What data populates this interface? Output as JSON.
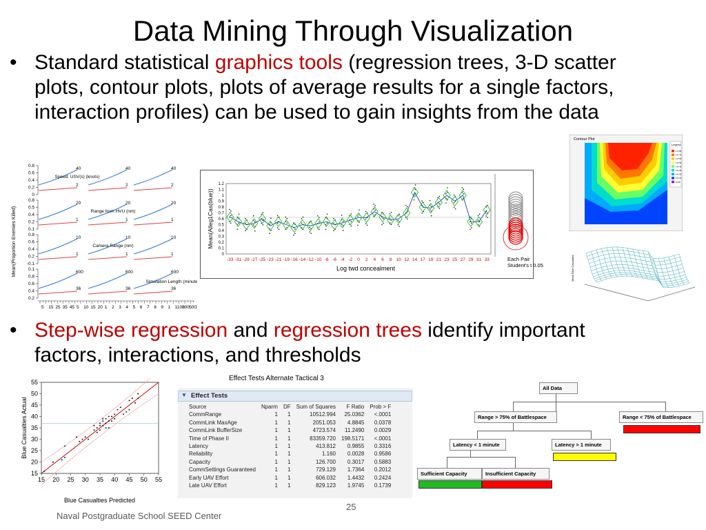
{
  "slide": {
    "title": "Data Mining Through Visualization",
    "page_number": "25",
    "footer": "Naval Postgraduate School SEED Center"
  },
  "bullets": [
    {
      "parts": [
        {
          "text": "Standard statistical ",
          "color": "#000000"
        },
        {
          "text": "graphics tools",
          "color": "#c00000"
        },
        {
          "text": " (regression trees, 3-D scatter plots, contour plots, plots of average results for a single factors, interaction profiles) can be used to gain insights from the data",
          "color": "#000000"
        }
      ]
    },
    {
      "parts": [
        {
          "text": "Step-wise regression",
          "color": "#c00000"
        },
        {
          "text": " and ",
          "color": "#000000"
        },
        {
          "text": "regression trees",
          "color": "#c00000"
        },
        {
          "text": " identify important factors, interactions, and thresholds",
          "color": "#000000"
        }
      ]
    }
  ],
  "profile_plot": {
    "ylabel": "Mean(Proportion Enemies Killed)",
    "row_ticks": [
      [
        "0.8",
        "0.6",
        "0.4",
        "0.2",
        "0"
      ],
      [
        "0.8",
        "0.5",
        "0.4",
        "0.2",
        "0.1"
      ],
      [
        "0.8",
        "0.6",
        "0.4",
        "0.2",
        "-0.1"
      ],
      [
        "0.1",
        "0.8",
        "0.6",
        "0.4",
        "0.2"
      ],
      [
        "-0.1",
        "0.8",
        "0.6",
        "0.4",
        "0.2",
        "-0.1"
      ]
    ],
    "factors": [
      "Speed: USV(s) (knots)",
      "Range from HVU (nm)",
      "Camera Range (nm)",
      "Simulation Length (minutes)"
    ],
    "level_labels": [
      [
        "40",
        "2",
        "40",
        "2",
        "40",
        "2"
      ],
      [
        "20",
        "1",
        "20",
        "1",
        "20",
        "1"
      ],
      [
        "10",
        "1",
        "10",
        "1",
        "10",
        "1"
      ],
      [
        "600",
        "36",
        "600",
        "36",
        "600",
        "36"
      ]
    ],
    "x_ticks": [
      "5",
      "15",
      "25",
      "35",
      "45",
      "5",
      "10",
      "15",
      "20",
      "1",
      "2",
      "3",
      "4",
      "5",
      "6",
      "7",
      "8",
      "9",
      "1",
      "1100",
      "300",
      "500",
      "700"
    ]
  },
  "means_plot": {
    "ylabel": "Mean(Alleg1Cas(blue))",
    "xlabel": "Log twd concealment",
    "y_ticks": [
      "1.2",
      "1.1",
      "1",
      "0.9",
      "0.8",
      "0.7",
      "0.6",
      "0.5",
      "0.4",
      "0.3",
      "0.2",
      "0.1",
      "0"
    ],
    "x_ticks": [
      "-33",
      "-31",
      "-29",
      "-27",
      "-25",
      "-23",
      "-21",
      "-19",
      "-16",
      "-14",
      "-12",
      "-10",
      "-8",
      "-6",
      "-4",
      "-2",
      "0",
      "2",
      "4",
      "6",
      "8",
      "10",
      "12",
      "14",
      "17",
      "19",
      "21",
      "23",
      "25",
      "27",
      "29",
      "31",
      "33"
    ],
    "means": [
      0.63,
      0.55,
      0.5,
      0.52,
      0.6,
      0.48,
      0.55,
      0.5,
      0.45,
      0.5,
      0.48,
      0.52,
      0.55,
      0.5,
      0.53,
      0.58,
      0.62,
      0.62,
      0.72,
      0.63,
      0.58,
      0.6,
      0.7,
      1.05,
      0.8,
      0.78,
      0.88,
      1.0,
      0.9,
      1.0,
      0.55,
      0.55,
      0.75
    ],
    "side_note": "Each Pair Student's t 0.05",
    "colors": {
      "mean_line": "#1f3fbf",
      "diamond": "#22bb22",
      "axis_tick": "#d00000"
    }
  },
  "contour_plot": {
    "title": "Contour Plot",
    "legend_title": "Legend",
    "legend_items": [
      "<=0.85",
      "<=0.75",
      "<=0.65",
      "<=0.55",
      "<=0.45",
      "<=0.35",
      "<=0.25",
      "<=0.15",
      ">0.85"
    ],
    "colors": [
      "#ff2200",
      "#ff7700",
      "#ffcc00",
      "#ffff33",
      "#66ff66",
      "#00ddcc",
      "#00aaff",
      "#0044ff",
      "#aa00cc"
    ]
  },
  "surface_plot": {
    "zlabel": "Mean Blue Casualties"
  },
  "scatter_plot": {
    "xlabel": "Blue Casualties Predicted",
    "ylabel": "Blue Casualties Actual",
    "x_ticks": [
      "15",
      "20",
      "25",
      "30",
      "35",
      "40",
      "45",
      "50",
      "55"
    ],
    "y_ticks": [
      "55",
      "50",
      "45",
      "40",
      "35",
      "30",
      "25",
      "20",
      "15"
    ],
    "points": [
      [
        16,
        16
      ],
      [
        19,
        20
      ],
      [
        22,
        21
      ],
      [
        23,
        27
      ],
      [
        23,
        22
      ],
      [
        27,
        31
      ],
      [
        28,
        29
      ],
      [
        29,
        30
      ],
      [
        30,
        31
      ],
      [
        31,
        30
      ],
      [
        33,
        34
      ],
      [
        33,
        36
      ],
      [
        34,
        35
      ],
      [
        34,
        33
      ],
      [
        35,
        34
      ],
      [
        35,
        37
      ],
      [
        36,
        38
      ],
      [
        36,
        36
      ],
      [
        37,
        37
      ],
      [
        37,
        39
      ],
      [
        38,
        38
      ],
      [
        38,
        40
      ],
      [
        39,
        40
      ],
      [
        39,
        38
      ],
      [
        40,
        41
      ],
      [
        40,
        39
      ],
      [
        41,
        43
      ],
      [
        42,
        44
      ],
      [
        43,
        41
      ],
      [
        44,
        42
      ],
      [
        45,
        43
      ],
      [
        45,
        47
      ],
      [
        46,
        48
      ],
      [
        47,
        46
      ],
      [
        48,
        48
      ],
      [
        48,
        50
      ],
      [
        36,
        39
      ],
      [
        38,
        35
      ],
      [
        35,
        36
      ],
      [
        37,
        35
      ]
    ]
  },
  "effect_tests": {
    "caption": "Effect Tests Alternate Tactical 3",
    "header": "Effect Tests",
    "columns": [
      "Source",
      "Nparm",
      "DF",
      "Sum of Squares",
      "F Ratio",
      "Prob > F"
    ],
    "rows": [
      [
        "CommRange",
        "1",
        "1",
        "10512.994",
        "25.0362",
        "<.0001"
      ],
      [
        "CommLink MaxAge",
        "1",
        "1",
        "2051.053",
        "4.8845",
        "0.0378"
      ],
      [
        "CommLink BufferSize",
        "1",
        "1",
        "4723.574",
        "11.2490",
        "0.0029"
      ],
      [
        "Time of Phase II",
        "1",
        "1",
        "83359.720",
        "198.5171",
        "<.0001"
      ],
      [
        "Latency",
        "1",
        "1",
        "413.812",
        "0.9855",
        "0.3316"
      ],
      [
        "Reliability",
        "1",
        "1",
        "1.160",
        "0.0028",
        "0.9586"
      ],
      [
        "Capacity",
        "1",
        "1",
        "126.700",
        "0.3017",
        "0.5883"
      ],
      [
        "CommSettings Guaranteed",
        "1",
        "1",
        "729.129",
        "1.7364",
        "0.2012"
      ],
      [
        "Early UAV Effort",
        "1",
        "1",
        "606.032",
        "1.4432",
        "0.2424"
      ],
      [
        "Late UAV Effort",
        "1",
        "1",
        "829.123",
        "1.9745",
        "0.1739"
      ]
    ]
  },
  "regression_tree": {
    "nodes": {
      "root": "All Data",
      "left": "Range > 75% of Battlespace",
      "right": "Range < 75% of Battlespace",
      "left_left": "Latency < 1 minute",
      "left_right": "Latency > 1 minute",
      "leaf_a": "Sufficient Capacity",
      "leaf_b": "Insufficient Capacity"
    },
    "bar_colors": {
      "right": "#ff0000",
      "left_right": "#ffff00",
      "leaf_a": "#22bb22",
      "leaf_b": "#ff0000"
    }
  }
}
